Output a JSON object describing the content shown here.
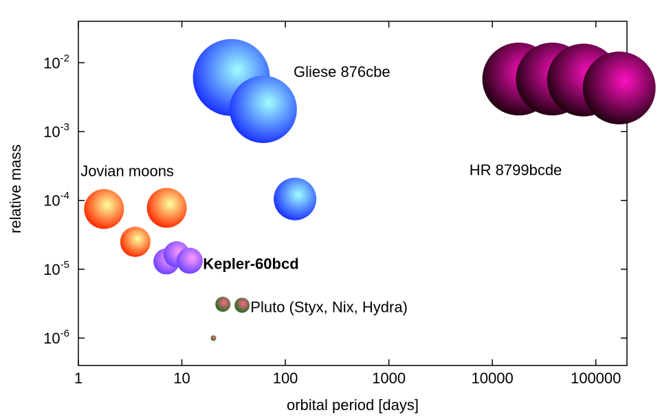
{
  "chart_data": {
    "type": "scatter",
    "xlabel": "orbital period [days]",
    "ylabel": "relative mass",
    "x_scale": "log",
    "y_scale": "log",
    "xlim": [
      1,
      200000
    ],
    "ylim": [
      4e-07,
      0.04
    ],
    "grid": false,
    "x_ticks": [
      {
        "value": 1,
        "label": "1"
      },
      {
        "value": 10,
        "label": "10"
      },
      {
        "value": 100,
        "label": "100"
      },
      {
        "value": 1000,
        "label": "1000"
      },
      {
        "value": 10000,
        "label": "10000"
      },
      {
        "value": 100000,
        "label": "100000"
      }
    ],
    "y_ticks": [
      {
        "value": 1e-06,
        "base": "10",
        "exp": "-6"
      },
      {
        "value": 1e-05,
        "base": "10",
        "exp": "-5"
      },
      {
        "value": 0.0001,
        "base": "10",
        "exp": "-4"
      },
      {
        "value": 0.001,
        "base": "10",
        "exp": "-3"
      },
      {
        "value": 0.01,
        "base": "10",
        "exp": "-2"
      }
    ],
    "series": [
      {
        "color": "#ff2a00",
        "highlight": "#ffffa0",
        "points": [
          {
            "x": 1.77,
            "y": 7.5e-05,
            "size": 58
          },
          {
            "x": 3.55,
            "y": 2.5e-05,
            "size": 44
          },
          {
            "x": 7.15,
            "y": 7.8e-05,
            "size": 58
          }
        ]
      },
      {
        "color": "#1a30ff",
        "highlight": "#a0ffff",
        "points": [
          {
            "x": 30.1,
            "y": 0.0061,
            "size": 112
          },
          {
            "x": 61.1,
            "y": 0.0021,
            "size": 98
          },
          {
            "x": 124,
            "y": 0.000105,
            "size": 62
          }
        ]
      },
      {
        "color": "#6a40ff",
        "highlight": "#ff9cff",
        "points": [
          {
            "x": 7.1,
            "y": 1.3e-05,
            "size": 38
          },
          {
            "x": 8.9,
            "y": 1.65e-05,
            "size": 38
          },
          {
            "x": 11.9,
            "y": 1.33e-05,
            "size": 38
          }
        ]
      },
      {
        "color": "#1e6a1e",
        "highlight": "#ff6a8c",
        "points": [
          {
            "x": 20.2,
            "y": 1e-06,
            "size": 8
          },
          {
            "x": 24.9,
            "y": 3.1e-06,
            "size": 22
          },
          {
            "x": 38.2,
            "y": 3e-06,
            "size": 22
          }
        ]
      },
      {
        "color": "#200010",
        "highlight": "#ff10c0",
        "points": [
          {
            "x": 18000,
            "y": 0.0058,
            "size": 106
          },
          {
            "x": 38000,
            "y": 0.0058,
            "size": 106
          },
          {
            "x": 76000,
            "y": 0.0056,
            "size": 106
          },
          {
            "x": 168000,
            "y": 0.0043,
            "size": 106
          }
        ]
      }
    ],
    "annotations": [
      {
        "text": "Gliese 876cbe",
        "x": 120,
        "y": 0.0075,
        "bold": false
      },
      {
        "text": "HR 8799bcde",
        "x": 6000,
        "y": 0.00028,
        "bold": false
      },
      {
        "text": "Jovian moons",
        "x": 1.05,
        "y": 0.00027,
        "bold": false
      },
      {
        "text": "Kepler-60bcd",
        "x": 16,
        "y": 1.22e-05,
        "bold": true
      },
      {
        "text": "Pluto (Styx, Nix, Hydra)",
        "x": 46,
        "y": 2.85e-06,
        "bold": false
      }
    ]
  }
}
